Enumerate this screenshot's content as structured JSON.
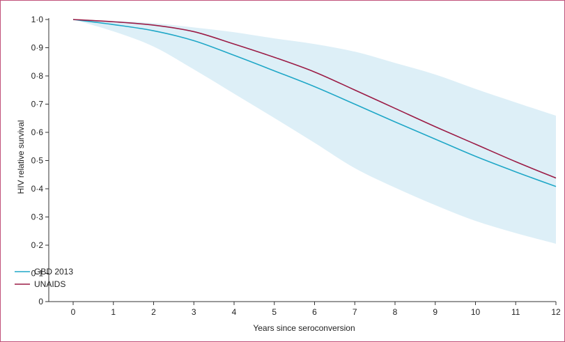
{
  "chart_data": {
    "type": "line",
    "title": "",
    "xlabel": "Years since seroconversion",
    "ylabel": "HIV relative survival",
    "xlim": [
      0,
      12
    ],
    "ylim": [
      0,
      1.0
    ],
    "x_ticks": [
      "0",
      "1",
      "2",
      "3",
      "4",
      "5",
      "6",
      "7",
      "8",
      "9",
      "10",
      "11",
      "12"
    ],
    "y_ticks": [
      "0",
      "0·1",
      "0·2",
      "0·3",
      "0·4",
      "0·5",
      "0·6",
      "0·7",
      "0·8",
      "0·9",
      "1·0"
    ],
    "grid": false,
    "legend_position": "bottom-left",
    "x": [
      0,
      1,
      2,
      3,
      4,
      5,
      6,
      7,
      8,
      9,
      10,
      11,
      12
    ],
    "series": [
      {
        "name": "GBD 2013",
        "color": "#1fa7c7",
        "values": [
          1.0,
          0.982,
          0.96,
          0.925,
          0.873,
          0.818,
          0.762,
          0.7,
          0.637,
          0.576,
          0.515,
          0.46,
          0.408
        ]
      },
      {
        "name": "UNAIDS",
        "color": "#9b1b45",
        "values": [
          1.0,
          0.992,
          0.98,
          0.957,
          0.913,
          0.866,
          0.814,
          0.75,
          0.685,
          0.62,
          0.558,
          0.496,
          0.438
        ]
      }
    ],
    "uncertainty_band": {
      "color": "#ddeff7",
      "upper": [
        1.0,
        0.995,
        0.987,
        0.972,
        0.955,
        0.933,
        0.913,
        0.886,
        0.846,
        0.805,
        0.754,
        0.706,
        0.659
      ],
      "lower": [
        1.0,
        0.958,
        0.904,
        0.823,
        0.737,
        0.651,
        0.563,
        0.473,
        0.404,
        0.342,
        0.286,
        0.243,
        0.205
      ]
    },
    "axis_color": "#333333"
  }
}
